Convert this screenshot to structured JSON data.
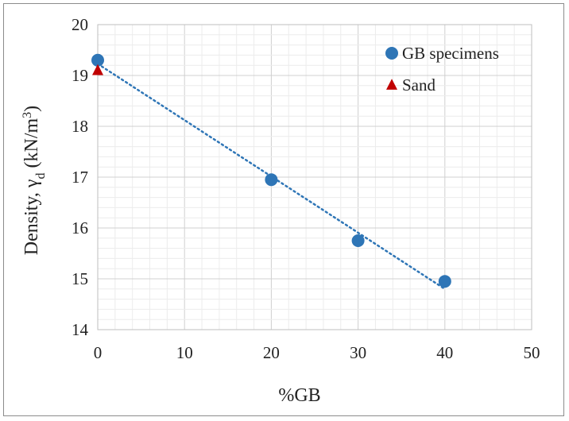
{
  "chart_data": {
    "type": "scatter",
    "xlabel": "%GB",
    "ylabel": {
      "prefix": "Density, γ",
      "subscript": "d",
      "unit_open": " (kN/m",
      "superscript": "3",
      "unit_close": ")"
    },
    "xlim": [
      0,
      50
    ],
    "ylim": [
      14,
      20
    ],
    "x_ticks": [
      "0",
      "10",
      "20",
      "30",
      "40",
      "50"
    ],
    "y_ticks": [
      "14",
      "15",
      "16",
      "17",
      "18",
      "19",
      "20"
    ],
    "grid": true,
    "legend_position": "top-right",
    "series": [
      {
        "name": "GB specimens",
        "marker": "circle",
        "color": "#2e75b6",
        "trendline": "linear-dotted",
        "points": [
          {
            "x": 0,
            "y": 19.3
          },
          {
            "x": 20,
            "y": 16.95
          },
          {
            "x": 30,
            "y": 15.75
          },
          {
            "x": 40,
            "y": 14.95
          }
        ]
      },
      {
        "name": "Sand",
        "marker": "triangle",
        "color": "#c00000",
        "points": [
          {
            "x": 0,
            "y": 19.1
          }
        ]
      }
    ]
  }
}
